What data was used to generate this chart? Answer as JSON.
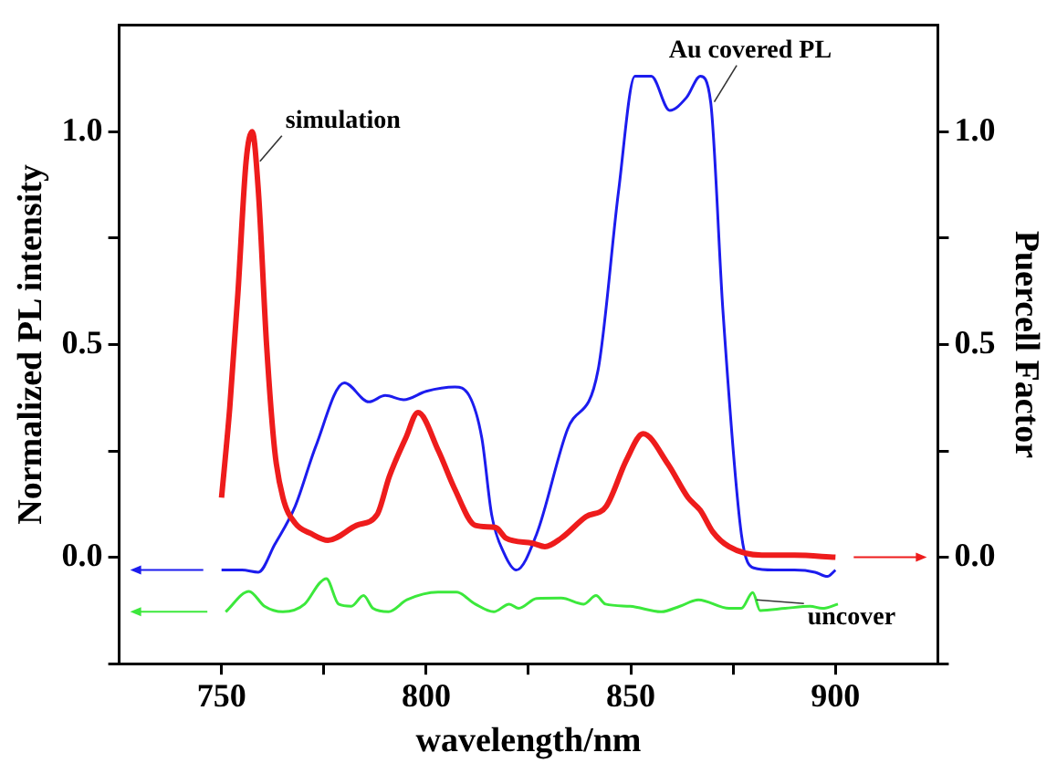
{
  "chart_data": {
    "type": "line",
    "xlabel": "wavelength/nm",
    "ylabel": "Normalized PL intensity",
    "y2label": "Puercell Factor",
    "xlim": [
      725,
      925
    ],
    "xticks": [
      750,
      {
        "value": 775,
        "label": null
      },
      800,
      {
        "value": 825,
        "label": null
      },
      850,
      {
        "value": 875,
        "label": null
      },
      900
    ],
    "ylim": [
      -0.25,
      1.25
    ],
    "yticks": [
      {
        "value": -0.25,
        "label": null
      },
      {
        "value": 0,
        "label": "0.0"
      },
      {
        "value": 0.25,
        "label": null
      },
      0.5,
      {
        "value": 0.75,
        "label": null
      },
      {
        "value": 1,
        "label": "1.0"
      }
    ],
    "y2lim": [
      -0.25,
      1.25
    ],
    "y2ticks": [
      {
        "value": -0.25,
        "label": null
      },
      {
        "value": 0,
        "label": "0.0"
      },
      {
        "value": 0.25,
        "label": null
      },
      0.5,
      {
        "value": 0.75,
        "label": null
      },
      {
        "value": 1,
        "label": "1.0"
      }
    ],
    "grid": false,
    "legend": false,
    "marker": "none",
    "line_style": "solid",
    "series": [
      {
        "color": "#ee1c1c",
        "axis": "y2",
        "x": [
          750,
          752,
          754,
          756,
          757.5,
          759,
          761,
          763,
          765,
          768,
          772,
          776,
          783,
          788,
          791,
          795,
          798,
          803,
          807,
          812,
          817,
          819.5,
          826,
          829,
          833,
          839,
          844,
          849,
          853,
          859,
          864,
          867,
          870,
          874,
          882,
          890,
          900
        ],
        "values": [
          0.14,
          0.35,
          0.62,
          0.93,
          1.0,
          0.86,
          0.5,
          0.25,
          0.14,
          0.08,
          0.055,
          0.04,
          0.075,
          0.1,
          0.19,
          0.28,
          0.34,
          0.25,
          0.16,
          0.075,
          0.07,
          0.045,
          0.033,
          0.025,
          0.045,
          0.095,
          0.12,
          0.23,
          0.29,
          0.22,
          0.14,
          0.11,
          0.06,
          0.025,
          0.005,
          0.005,
          0.0
        ]
      },
      {
        "color": "#1c1cee",
        "x": [
          750,
          755,
          759,
          763,
          768,
          773,
          780,
          786,
          790,
          794.5,
          800,
          807,
          810.5,
          813.6,
          816,
          819,
          822,
          827,
          834.5,
          842,
          847,
          851,
          855,
          859.5,
          863.6,
          867,
          869.5,
          872.5,
          877,
          880,
          885,
          890,
          895,
          898,
          900
        ],
        "values": [
          -0.03,
          -0.03,
          -0.035,
          0.03,
          0.12,
          0.26,
          0.41,
          0.365,
          0.38,
          0.37,
          0.39,
          0.4,
          0.38,
          0.28,
          0.1,
          0.01,
          -0.03,
          0.055,
          0.3,
          0.44,
          0.86,
          1.13,
          1.13,
          1.05,
          1.08,
          1.13,
          1.07,
          0.58,
          0.055,
          -0.025,
          -0.03,
          -0.03,
          -0.035,
          -0.045,
          -0.03
        ]
      },
      {
        "color": "#3ce83c",
        "x": [
          751,
          756.7,
          760.5,
          765,
          770.3,
          774,
          775.6,
          778.6,
          781.7,
          784.7,
          787,
          790.8,
          795.3,
          802.9,
          807.4,
          812,
          816.5,
          820.3,
          822.6,
          827,
          833,
          838.5,
          841.5,
          843.8,
          849.8,
          857.4,
          862,
          866.5,
          874,
          877,
          879.8,
          881.6,
          887.7,
          893.8,
          896.8,
          900.6
        ],
        "values": [
          -0.128,
          -0.08,
          -0.115,
          -0.128,
          -0.11,
          -0.06,
          -0.05,
          -0.11,
          -0.115,
          -0.09,
          -0.12,
          -0.128,
          -0.1,
          -0.082,
          -0.082,
          -0.11,
          -0.128,
          -0.11,
          -0.12,
          -0.097,
          -0.096,
          -0.11,
          -0.09,
          -0.11,
          -0.115,
          -0.128,
          -0.115,
          -0.1,
          -0.12,
          -0.12,
          -0.083,
          -0.125,
          -0.12,
          -0.115,
          -0.12,
          -0.11
        ]
      }
    ],
    "annotations": [
      {
        "text": "simulation",
        "x": 758.5,
        "y": 0.93
      },
      {
        "text": "Au covered PL",
        "x": 869.5,
        "y": 1.07
      },
      {
        "text": "uncover",
        "x": 879.8,
        "y": -0.1
      }
    ]
  }
}
